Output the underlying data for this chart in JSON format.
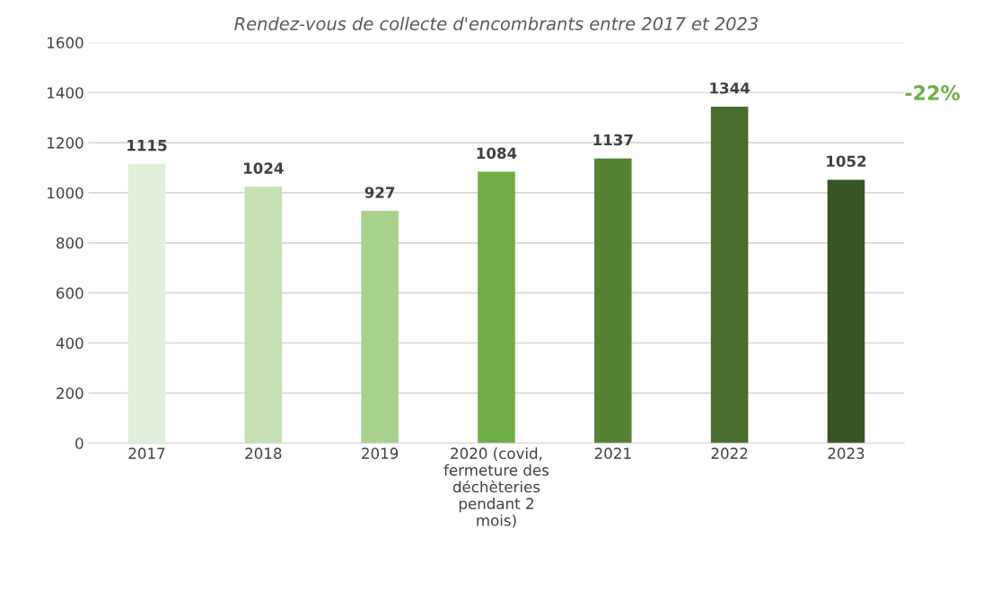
{
  "chart_data": {
    "type": "bar",
    "title": "Rendez-vous de collecte d'encombrants entre 2017 et 2023",
    "categories": [
      "2017",
      "2018",
      "2019",
      "2020 (covid, fermeture des déchèteries pendant 2 mois)",
      "2021",
      "2022",
      "2023"
    ],
    "values": [
      1115,
      1024,
      927,
      1084,
      1137,
      1344,
      1052
    ],
    "colors": [
      "#e2efda",
      "#c6e0b4",
      "#a9d18e",
      "#70ad47",
      "#548235",
      "#486d2e",
      "#375623"
    ],
    "ylim": [
      0,
      1600
    ],
    "yticks": [
      0,
      200,
      400,
      600,
      800,
      1000,
      1200,
      1400,
      1600
    ],
    "grid": "y",
    "data_labels": true,
    "annotations": [
      "-22%"
    ]
  }
}
